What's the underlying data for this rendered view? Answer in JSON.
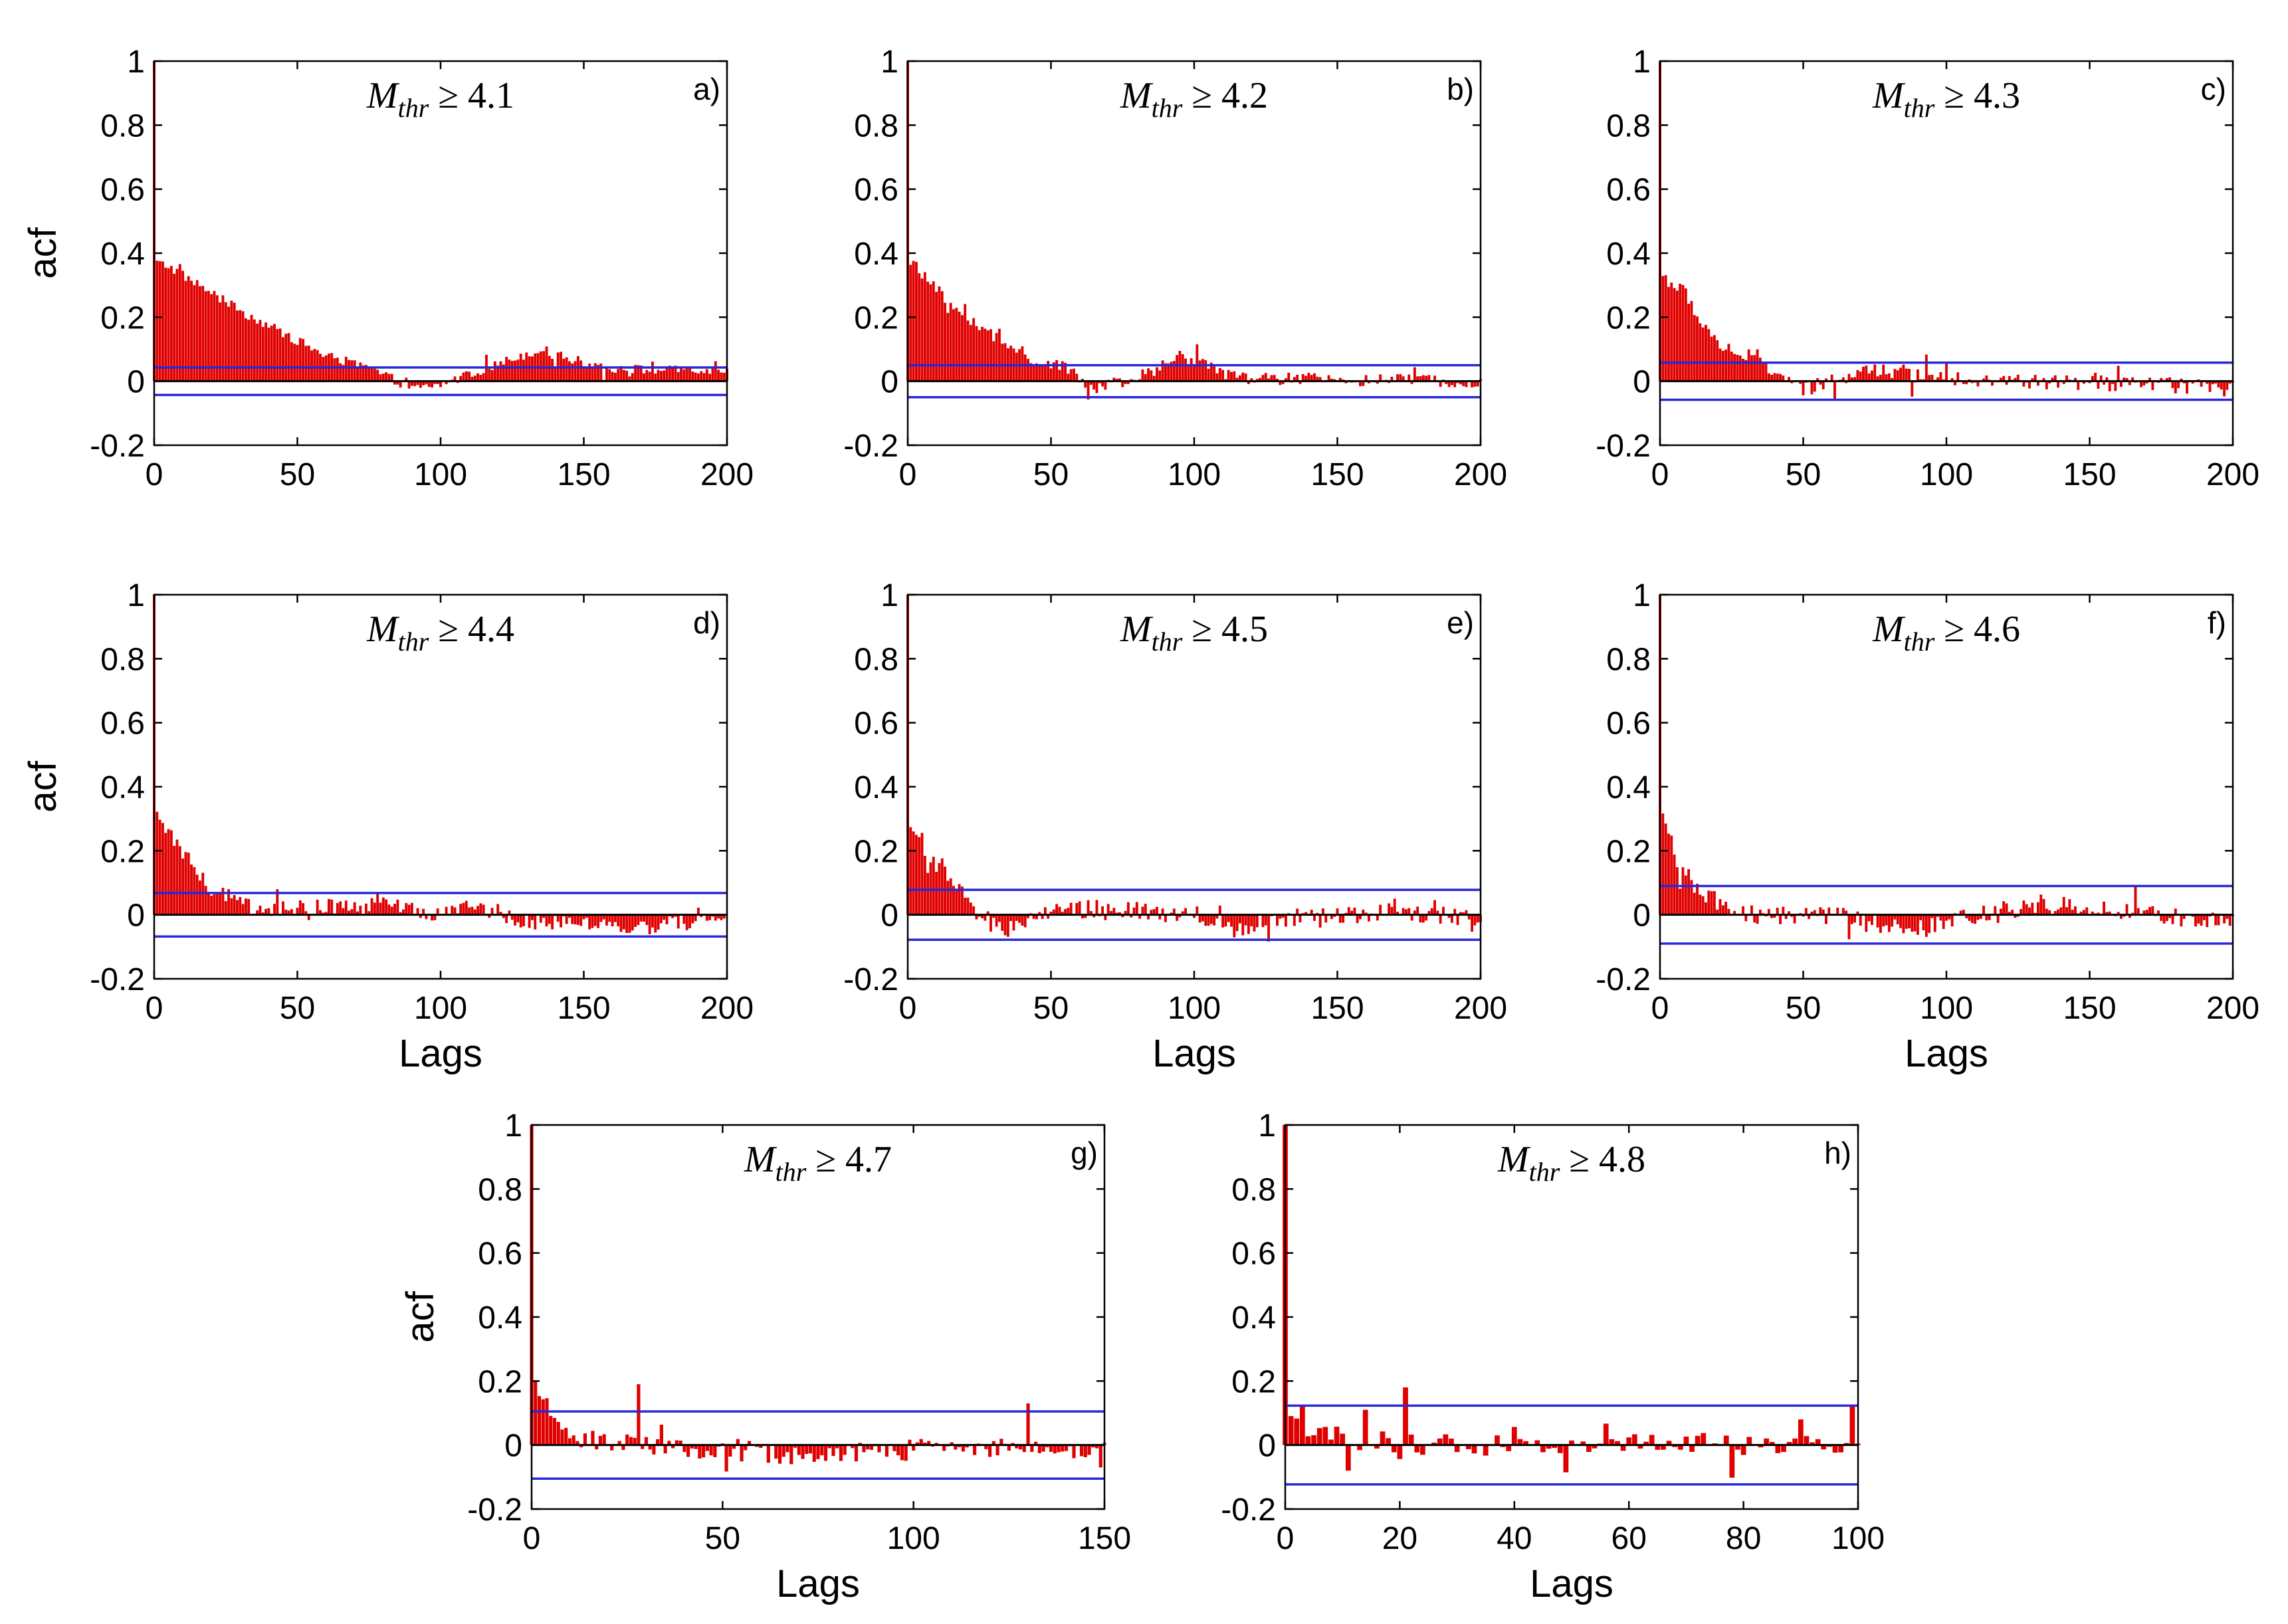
{
  "colors": {
    "bars": "#e00000",
    "confidence": "#2828d8",
    "axes": "#000000",
    "background": "#ffffff"
  },
  "chart_data": [
    {
      "type": "bar",
      "panel": "a)",
      "title_symbol": "M",
      "title_subscript": "thr",
      "title_relation": "≥ 4.1",
      "xlabel": "",
      "ylabel": "acf",
      "xlim": [
        0,
        200
      ],
      "ylim": [
        -0.2,
        1
      ],
      "xticks": [
        0,
        50,
        100,
        150,
        200
      ],
      "yticks": [
        -0.2,
        0,
        0.2,
        0.4,
        0.6,
        0.8,
        1
      ],
      "ytick_labels": [
        "-0.2",
        "0",
        "0.2",
        "0.4",
        "0.6",
        "0.8",
        "1"
      ],
      "confidence_bounds": [
        0.043,
        -0.043
      ],
      "acf_profile": [
        [
          0,
          1
        ],
        [
          1,
          0.37
        ],
        [
          5,
          0.36
        ],
        [
          30,
          0.22
        ],
        [
          60,
          0.08
        ],
        [
          75,
          0.04
        ],
        [
          85,
          0.0
        ],
        [
          90,
          -0.025
        ],
        [
          100,
          -0.01
        ],
        [
          110,
          0.02
        ],
        [
          125,
          0.07
        ],
        [
          135,
          0.1
        ],
        [
          145,
          0.07
        ],
        [
          160,
          0.04
        ],
        [
          200,
          0.03
        ]
      ],
      "noise_level": 0.015
    },
    {
      "type": "bar",
      "panel": "b)",
      "title_symbol": "M",
      "title_subscript": "thr",
      "title_relation": "≥ 4.2",
      "xlabel": "",
      "ylabel": "",
      "xlim": [
        0,
        200
      ],
      "ylim": [
        -0.2,
        1
      ],
      "xticks": [
        0,
        50,
        100,
        150,
        200
      ],
      "yticks": [
        -0.2,
        0,
        0.2,
        0.4,
        0.6,
        0.8,
        1
      ],
      "ytick_labels": [
        "-0.2",
        "0",
        "0.2",
        "0.4",
        "0.6",
        "0.8",
        "1"
      ],
      "confidence_bounds": [
        0.05,
        -0.05
      ],
      "acf_profile": [
        [
          0,
          1
        ],
        [
          1,
          0.38
        ],
        [
          5,
          0.33
        ],
        [
          20,
          0.2
        ],
        [
          40,
          0.08
        ],
        [
          55,
          0.04
        ],
        [
          65,
          -0.02
        ],
        [
          75,
          -0.01
        ],
        [
          85,
          0.03
        ],
        [
          95,
          0.08
        ],
        [
          105,
          0.05
        ],
        [
          115,
          0.01
        ],
        [
          200,
          0.0
        ]
      ],
      "noise_level": 0.02
    },
    {
      "type": "bar",
      "panel": "c)",
      "title_symbol": "M",
      "title_subscript": "thr",
      "title_relation": "≥ 4.3",
      "xlabel": "",
      "ylabel": "",
      "xlim": [
        0,
        200
      ],
      "ylim": [
        -0.2,
        1
      ],
      "xticks": [
        0,
        50,
        100,
        150,
        200
      ],
      "yticks": [
        -0.2,
        0,
        0.2,
        0.4,
        0.6,
        0.8,
        1
      ],
      "ytick_labels": [
        "-0.2",
        "0",
        "0.2",
        "0.4",
        "0.6",
        "0.8",
        "1"
      ],
      "confidence_bounds": [
        0.058,
        -0.058
      ],
      "acf_profile": [
        [
          0,
          1
        ],
        [
          1,
          0.33
        ],
        [
          8,
          0.28
        ],
        [
          20,
          0.12
        ],
        [
          35,
          0.06
        ],
        [
          45,
          0.0
        ],
        [
          50,
          -0.03
        ],
        [
          60,
          0.0
        ],
        [
          75,
          0.04
        ],
        [
          90,
          0.02
        ],
        [
          120,
          0.0
        ],
        [
          170,
          -0.01
        ],
        [
          200,
          -0.02
        ]
      ],
      "noise_level": 0.025
    },
    {
      "type": "bar",
      "panel": "d)",
      "title_symbol": "M",
      "title_subscript": "thr",
      "title_relation": "≥ 4.4",
      "xlabel": "Lags",
      "ylabel": "acf",
      "xlim": [
        0,
        200
      ],
      "ylim": [
        -0.2,
        1
      ],
      "xticks": [
        0,
        50,
        100,
        150,
        200
      ],
      "yticks": [
        -0.2,
        0,
        0.2,
        0.4,
        0.6,
        0.8,
        1
      ],
      "ytick_labels": [
        "-0.2",
        "0",
        "0.2",
        "0.4",
        "0.6",
        "0.8",
        "1"
      ],
      "confidence_bounds": [
        0.068,
        -0.068
      ],
      "acf_profile": [
        [
          0,
          1
        ],
        [
          1,
          0.29
        ],
        [
          8,
          0.22
        ],
        [
          20,
          0.08
        ],
        [
          35,
          0.02
        ],
        [
          50,
          0.02
        ],
        [
          80,
          0.03
        ],
        [
          100,
          0.0
        ],
        [
          110,
          0.03
        ],
        [
          130,
          -0.02
        ],
        [
          170,
          -0.04
        ],
        [
          200,
          -0.01
        ]
      ],
      "noise_level": 0.025
    },
    {
      "type": "bar",
      "panel": "e)",
      "title_symbol": "M",
      "title_subscript": "thr",
      "title_relation": "≥ 4.5",
      "xlabel": "Lags",
      "ylabel": "",
      "xlim": [
        0,
        200
      ],
      "ylim": [
        -0.2,
        1
      ],
      "xticks": [
        0,
        50,
        100,
        150,
        200
      ],
      "yticks": [
        -0.2,
        0,
        0.2,
        0.4,
        0.6,
        0.8,
        1
      ],
      "ytick_labels": [
        "-0.2",
        "0",
        "0.2",
        "0.4",
        "0.6",
        "0.8",
        "1"
      ],
      "confidence_bounds": [
        0.078,
        -0.078
      ],
      "acf_profile": [
        [
          0,
          1
        ],
        [
          1,
          0.29
        ],
        [
          8,
          0.18
        ],
        [
          20,
          0.05
        ],
        [
          32,
          -0.05
        ],
        [
          50,
          0.01
        ],
        [
          70,
          0.02
        ],
        [
          100,
          0.0
        ],
        [
          115,
          -0.04
        ],
        [
          130,
          -0.01
        ],
        [
          170,
          0.01
        ],
        [
          200,
          -0.01
        ]
      ],
      "noise_level": 0.03
    },
    {
      "type": "bar",
      "panel": "f)",
      "title_symbol": "M",
      "title_subscript": "thr",
      "title_relation": "≥ 4.6",
      "xlabel": "Lags",
      "ylabel": "",
      "xlim": [
        0,
        200
      ],
      "ylim": [
        -0.2,
        1
      ],
      "xticks": [
        0,
        50,
        100,
        150,
        200
      ],
      "yticks": [
        -0.2,
        0,
        0.2,
        0.4,
        0.6,
        0.8,
        1
      ],
      "ytick_labels": [
        "-0.2",
        "0",
        "0.2",
        "0.4",
        "0.6",
        "0.8",
        "1"
      ],
      "confidence_bounds": [
        0.09,
        -0.09
      ],
      "acf_profile": [
        [
          0,
          1
        ],
        [
          1,
          0.31
        ],
        [
          6,
          0.17
        ],
        [
          15,
          0.06
        ],
        [
          30,
          0.0
        ],
        [
          60,
          0.0
        ],
        [
          90,
          -0.05
        ],
        [
          110,
          0.0
        ],
        [
          140,
          0.03
        ],
        [
          170,
          0.0
        ],
        [
          200,
          -0.02
        ]
      ],
      "noise_level": 0.03
    },
    {
      "type": "bar",
      "panel": "g)",
      "title_symbol": "M",
      "title_subscript": "thr",
      "title_relation": "≥ 4.7",
      "xlabel": "Lags",
      "ylabel": "acf",
      "xlim": [
        0,
        150
      ],
      "ylim": [
        -0.2,
        1
      ],
      "xticks": [
        0,
        50,
        100,
        150
      ],
      "yticks": [
        -0.2,
        0,
        0.2,
        0.4,
        0.6,
        0.8,
        1
      ],
      "ytick_labels": [
        "-0.2",
        "0",
        "0.2",
        "0.4",
        "0.6",
        "0.8",
        "1"
      ],
      "confidence_bounds": [
        0.105,
        -0.105
      ],
      "acf_profile": [
        [
          0,
          1
        ],
        [
          1,
          0.17
        ],
        [
          5,
          0.1
        ],
        [
          12,
          0.02
        ],
        [
          30,
          0.0
        ],
        [
          75,
          -0.04
        ],
        [
          100,
          0.0
        ],
        [
          150,
          -0.02
        ]
      ],
      "noise_level": 0.03,
      "spikes": [
        [
          28,
          0.19
        ],
        [
          130,
          0.13
        ],
        [
          149,
          -0.07
        ]
      ]
    },
    {
      "type": "bar",
      "panel": "h)",
      "title_symbol": "M",
      "title_subscript": "thr",
      "title_relation": "≥ 4.8",
      "xlabel": "Lags",
      "ylabel": "",
      "xlim": [
        0,
        100
      ],
      "ylim": [
        -0.2,
        1
      ],
      "xticks": [
        0,
        20,
        40,
        60,
        80,
        100
      ],
      "yticks": [
        -0.2,
        0,
        0.2,
        0.4,
        0.6,
        0.8,
        1
      ],
      "ytick_labels": [
        "-0.2",
        "0",
        "0.2",
        "0.4",
        "0.6",
        "0.8",
        "1"
      ],
      "confidence_bounds": [
        0.123,
        -0.123
      ],
      "acf_profile": [
        [
          0,
          1
        ],
        [
          1,
          0.1
        ],
        [
          5,
          0.04
        ],
        [
          20,
          0.0
        ],
        [
          100,
          0.0
        ]
      ],
      "noise_level": 0.035,
      "spikes": [
        [
          21,
          0.18
        ],
        [
          3,
          0.12
        ],
        [
          14,
          0.11
        ],
        [
          99,
          0.12
        ],
        [
          11,
          -0.08
        ],
        [
          90,
          0.08
        ]
      ]
    }
  ]
}
